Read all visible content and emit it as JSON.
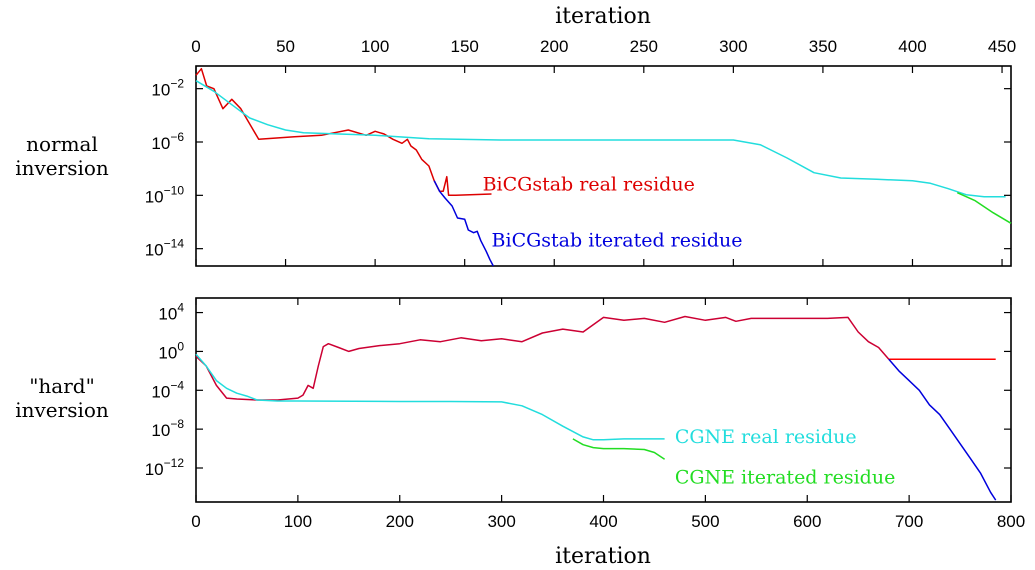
{
  "top_axis_label": "iteration",
  "bottom_axis_label": "iteration",
  "row_labels": {
    "normal": [
      "normal",
      "inversion"
    ],
    "hard": [
      "\"hard\"",
      "inversion"
    ]
  },
  "colors": {
    "red": "#dd0000",
    "crimson": "#cc0033",
    "blue": "#0000dd",
    "cyan": "#22dddd",
    "green": "#22dd22"
  },
  "chart_data": [
    {
      "type": "line",
      "name": "normal inversion",
      "x_ticks": [
        0,
        50,
        100,
        150,
        200,
        250,
        300,
        350,
        400,
        450
      ],
      "xlim": [
        0,
        455
      ],
      "y_scale": "log",
      "ylim_log10": [
        -15.3,
        -0.3
      ],
      "y_ticks": [
        {
          "exp": -2,
          "label": "10",
          "sup": "−2"
        },
        {
          "exp": -6,
          "label": "10",
          "sup": "−6"
        },
        {
          "exp": -10,
          "label": "10",
          "sup": "−10"
        },
        {
          "exp": -14,
          "label": "10",
          "sup": "−14"
        }
      ],
      "series": [
        {
          "name": "BiCGstab real residue",
          "color": "#dd0000",
          "label_at": [
            160,
            -9.2
          ],
          "points": [
            [
              0,
              -1
            ],
            [
              3,
              -0.5
            ],
            [
              6,
              -1.8
            ],
            [
              10,
              -2
            ],
            [
              15,
              -3.5
            ],
            [
              20,
              -2.8
            ],
            [
              25,
              -3.5
            ],
            [
              35,
              -5.8
            ],
            [
              55,
              -5.6
            ],
            [
              70,
              -5.5
            ],
            [
              85,
              -5.1
            ],
            [
              95,
              -5.5
            ],
            [
              100,
              -5.2
            ],
            [
              105,
              -5.4
            ],
            [
              110,
              -5.8
            ],
            [
              115,
              -6.1
            ],
            [
              118,
              -5.8
            ],
            [
              120,
              -6.3
            ],
            [
              123,
              -6.6
            ],
            [
              126,
              -7.3
            ],
            [
              130,
              -7.8
            ],
            [
              133,
              -8.9
            ],
            [
              136,
              -9.7
            ],
            [
              138,
              -9.7
            ],
            [
              140,
              -8.6
            ],
            [
              141,
              -10.0
            ],
            [
              145,
              -10.0
            ],
            [
              165,
              -9.9
            ]
          ]
        },
        {
          "name": "BiCGstab iterated residue",
          "color": "#0000dd",
          "label_at": [
            165,
            -13.4
          ],
          "points": [
            [
              133,
              -8.9
            ],
            [
              136,
              -9.7
            ],
            [
              139,
              -10.2
            ],
            [
              143,
              -10.8
            ],
            [
              146,
              -11.7
            ],
            [
              150,
              -11.8
            ],
            [
              152,
              -12.6
            ],
            [
              155,
              -12.8
            ],
            [
              157,
              -12.7
            ],
            [
              159,
              -13.4
            ],
            [
              162,
              -14.2
            ],
            [
              164,
              -14.8
            ],
            [
              166,
              -15.3
            ]
          ]
        },
        {
          "name": "cyan",
          "color": "#22dddd",
          "points": [
            [
              0,
              -1.4
            ],
            [
              10,
              -2.2
            ],
            [
              20,
              -3.2
            ],
            [
              30,
              -4.2
            ],
            [
              40,
              -4.7
            ],
            [
              50,
              -5.1
            ],
            [
              60,
              -5.3
            ],
            [
              80,
              -5.4
            ],
            [
              100,
              -5.5
            ],
            [
              130,
              -5.75
            ],
            [
              170,
              -5.85
            ],
            [
              250,
              -5.85
            ],
            [
              300,
              -5.85
            ],
            [
              315,
              -6.2
            ],
            [
              330,
              -7.2
            ],
            [
              345,
              -8.3
            ],
            [
              360,
              -8.7
            ],
            [
              380,
              -8.8
            ],
            [
              400,
              -8.9
            ],
            [
              410,
              -9.1
            ],
            [
              420,
              -9.5
            ],
            [
              430,
              -9.95
            ],
            [
              440,
              -10.1
            ],
            [
              452,
              -10.1
            ]
          ]
        },
        {
          "name": "green",
          "color": "#22dd22",
          "points": [
            [
              425,
              -9.8
            ],
            [
              435,
              -10.4
            ],
            [
              445,
              -11.3
            ],
            [
              455,
              -12.1
            ]
          ]
        }
      ]
    },
    {
      "type": "line",
      "name": "hard inversion",
      "x_ticks": [
        0,
        100,
        200,
        300,
        400,
        500,
        600,
        700,
        800
      ],
      "xlim": [
        0,
        800
      ],
      "y_scale": "log",
      "ylim_log10": [
        -15.5,
        5.5
      ],
      "y_ticks": [
        {
          "exp": 4,
          "label": "10",
          "sup": "4"
        },
        {
          "exp": 0,
          "label": "10",
          "sup": "0"
        },
        {
          "exp": -4,
          "label": "10",
          "sup": "−4"
        },
        {
          "exp": -8,
          "label": "10",
          "sup": "−8"
        },
        {
          "exp": -12,
          "label": "10",
          "sup": "−12"
        }
      ],
      "series": [
        {
          "name": "red",
          "color": "#cc0033",
          "points": [
            [
              0,
              -0.5
            ],
            [
              10,
              -1.5
            ],
            [
              20,
              -3.5
            ],
            [
              30,
              -4.8
            ],
            [
              40,
              -4.9
            ],
            [
              60,
              -5.0
            ],
            [
              80,
              -5.0
            ],
            [
              100,
              -4.8
            ],
            [
              105,
              -4.5
            ],
            [
              110,
              -3.5
            ],
            [
              115,
              -3.8
            ],
            [
              120,
              -1.5
            ],
            [
              125,
              0.5
            ],
            [
              130,
              0.8
            ],
            [
              140,
              0.4
            ],
            [
              150,
              0
            ],
            [
              160,
              0.3
            ],
            [
              180,
              0.6
            ],
            [
              200,
              0.8
            ],
            [
              220,
              1.2
            ],
            [
              240,
              1.0
            ],
            [
              260,
              1.4
            ],
            [
              280,
              1.1
            ],
            [
              300,
              1.3
            ],
            [
              320,
              1.0
            ],
            [
              340,
              1.9
            ],
            [
              360,
              2.3
            ],
            [
              380,
              2.0
            ],
            [
              400,
              3.5
            ],
            [
              420,
              3.2
            ],
            [
              440,
              3.4
            ],
            [
              460,
              3.0
            ],
            [
              480,
              3.6
            ],
            [
              500,
              3.2
            ],
            [
              520,
              3.5
            ],
            [
              530,
              3.1
            ],
            [
              545,
              3.4
            ],
            [
              590,
              3.4
            ],
            [
              620,
              3.4
            ],
            [
              640,
              3.5
            ],
            [
              650,
              2.0
            ],
            [
              660,
              1.0
            ],
            [
              670,
              0.4
            ],
            [
              680,
              -0.8
            ]
          ]
        },
        {
          "name": "red flat",
          "color": "#ff0000",
          "points": [
            [
              680,
              -0.8
            ],
            [
              785,
              -0.8
            ]
          ]
        },
        {
          "name": "blue",
          "color": "#0000dd",
          "points": [
            [
              680,
              -0.8
            ],
            [
              690,
              -2.0
            ],
            [
              700,
              -3.0
            ],
            [
              710,
              -4.0
            ],
            [
              720,
              -5.5
            ],
            [
              730,
              -6.5
            ],
            [
              740,
              -8.0
            ],
            [
              750,
              -9.5
            ],
            [
              760,
              -11.0
            ],
            [
              770,
              -12.5
            ],
            [
              780,
              -14.5
            ],
            [
              785,
              -15.3
            ]
          ]
        },
        {
          "name": "CGNE real residue",
          "color": "#22dddd",
          "label_at": [
            470,
            -8.8
          ],
          "points": [
            [
              0,
              -0.3
            ],
            [
              10,
              -1.5
            ],
            [
              20,
              -3.0
            ],
            [
              30,
              -3.8
            ],
            [
              40,
              -4.3
            ],
            [
              50,
              -4.6
            ],
            [
              60,
              -5.0
            ],
            [
              80,
              -5.1
            ],
            [
              100,
              -5.1
            ],
            [
              200,
              -5.15
            ],
            [
              250,
              -5.15
            ],
            [
              300,
              -5.2
            ],
            [
              320,
              -5.6
            ],
            [
              340,
              -6.5
            ],
            [
              360,
              -7.7
            ],
            [
              380,
              -8.8
            ],
            [
              390,
              -9.1
            ],
            [
              400,
              -9.1
            ],
            [
              420,
              -9.0
            ],
            [
              440,
              -9.0
            ],
            [
              460,
              -9.0
            ]
          ]
        },
        {
          "name": "CGNE iterated residue",
          "color": "#22dd22",
          "label_at": [
            470,
            -13.0
          ],
          "points": [
            [
              370,
              -9.0
            ],
            [
              380,
              -9.6
            ],
            [
              390,
              -9.9
            ],
            [
              400,
              -10.0
            ],
            [
              420,
              -10.0
            ],
            [
              440,
              -10.1
            ],
            [
              450,
              -10.4
            ],
            [
              460,
              -11.1
            ]
          ]
        }
      ]
    }
  ]
}
